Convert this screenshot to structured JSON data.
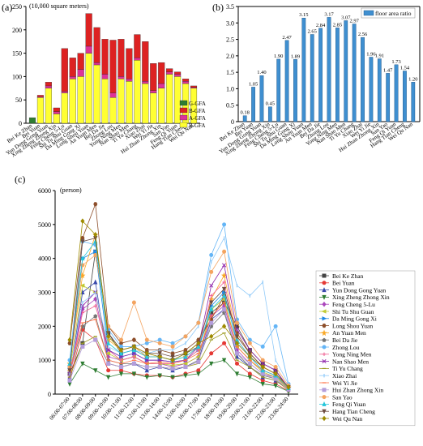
{
  "panels": {
    "a": "(a)",
    "b": "(b)",
    "c": "(c)"
  },
  "chart_data": [
    {
      "type": "bar",
      "stacked": true,
      "ylabel": "(10,000 square meters)",
      "ylim": [
        0,
        250
      ],
      "yticks": [
        0,
        50,
        100,
        150,
        200,
        250
      ],
      "legend_position": "bottom-right",
      "categories": [
        "Bei Ke Zhan",
        "Bei Yuan",
        "Yun Dong Gong Yuan",
        "Xing Zheng Zhong Xin",
        "Feng Cheng 5-Lu",
        "Shi Tu Shu Guan",
        "Da Ming Gong Xi",
        "Long Shou Yuan",
        "An Yuan Men",
        "Bei Da Jie",
        "Zhong Lou",
        "Yong Ning Men",
        "Nan Shao Men",
        "Ti Yu Chang",
        "Xiao Zhai",
        "Wei Yi Jie",
        "Hui Zhan Zhong Xin",
        "San Yao",
        "Feng Qi Yuan",
        "Hang Tian Cheng",
        "Wei Qu Nan"
      ],
      "series": [
        {
          "name": "R-GFA",
          "color": "#ffff33",
          "values": [
            0,
            55,
            75,
            20,
            65,
            95,
            100,
            150,
            125,
            95,
            55,
            95,
            90,
            135,
            85,
            65,
            75,
            105,
            100,
            85,
            75
          ]
        },
        {
          "name": "A-GFA",
          "color": "#dd3399",
          "values": [
            0,
            2,
            5,
            5,
            3,
            5,
            15,
            15,
            5,
            10,
            10,
            5,
            5,
            5,
            5,
            5,
            10,
            5,
            5,
            5,
            2
          ]
        },
        {
          "name": "B-GFA",
          "color": "#dd2222",
          "values": [
            0,
            3,
            8,
            8,
            92,
            40,
            35,
            70,
            75,
            75,
            113,
            80,
            65,
            50,
            85,
            58,
            45,
            7,
            5,
            5,
            3
          ]
        },
        {
          "name": "G-GFA",
          "color": "#2e7d32",
          "values": [
            12,
            0,
            0,
            0,
            0,
            0,
            0,
            0,
            0,
            0,
            0,
            0,
            0,
            0,
            0,
            0,
            0,
            0,
            0,
            0,
            0
          ]
        }
      ]
    },
    {
      "type": "bar",
      "ylim": [
        0,
        3.5
      ],
      "yticks": [
        "0",
        "0.5",
        "1.0",
        "1.5",
        "2.0",
        "2.5",
        "3.0",
        "3.5"
      ],
      "legend_position": "top-right",
      "categories": [
        "Bei Ke Zhan",
        "Bei Yuan",
        "Yun Dong Gong Yuan",
        "Xing Zheng Zhong Xin",
        "Feng Cheng 5-Lu",
        "Shi Tu Shu Guan",
        "Da Ming Gong Xi",
        "Long Shou Yuan",
        "An Yuan Men",
        "Bei Da Jie",
        "Zhong Lou",
        "Yong Ning Men",
        "Nan Shao Men",
        "Ti Yu Chang",
        "Xiao Zhai",
        "Wei Yi Jie",
        "Hui Zhan Zhong Xin",
        "San Yao",
        "Feng Qi Yuan",
        "Hang Tian Cheng",
        "Wei Qu Nan"
      ],
      "series": [
        {
          "name": "floor area ratio",
          "color": "#3f8fd0",
          "values": [
            0.18,
            1.05,
            1.4,
            0.45,
            1.9,
            2.47,
            1.89,
            3.15,
            2.65,
            2.84,
            3.17,
            2.85,
            3.07,
            2.97,
            2.56,
            1.96,
            1.91,
            1.47,
            1.73,
            1.54,
            1.2
          ],
          "labels": [
            "0.18",
            "1.05",
            "1.40",
            "0.45",
            "1.90",
            "2.47",
            "1.89",
            "3.15",
            "2.65",
            "2.84",
            "3.17",
            "2.85",
            "3.07",
            "2.97",
            "2.56",
            "1.96",
            "1.91",
            "1.47",
            "1.73",
            "1.54",
            "1.20"
          ]
        }
      ]
    },
    {
      "type": "line",
      "ylabel": "(person)",
      "ylim": [
        0,
        6000
      ],
      "yticks": [
        0,
        1000,
        2000,
        3000,
        4000,
        5000,
        6000
      ],
      "legend_position": "right",
      "x": [
        "06:00-07:00",
        "07:00-08:00",
        "08:00-09:00",
        "09:00-10:00",
        "10:00-11:00",
        "11:00-12:00",
        "12:00-13:00",
        "13:00-14:00",
        "14:00-15:00",
        "15:00-16:00",
        "16:00-17:00",
        "17:00-18:00",
        "18:00-19:00",
        "19:00-20:00",
        "20:00-21:00",
        "21:00-22:00",
        "22:00-23:00",
        "23:00-24:00"
      ],
      "series": [
        {
          "name": "Bei Ke Zhan",
          "color": "#444444",
          "marker": "square",
          "values": [
            600,
            1500,
            4200,
            1800,
            1200,
            1300,
            1100,
            1100,
            1000,
            1200,
            1400,
            2400,
            2700,
            2000,
            1300,
            900,
            700,
            150
          ]
        },
        {
          "name": "Bei Yuan",
          "color": "#e53935",
          "marker": "circle",
          "values": [
            400,
            1900,
            1600,
            700,
            700,
            600,
            550,
            550,
            500,
            600,
            700,
            1200,
            1500,
            900,
            600,
            400,
            300,
            100
          ]
        },
        {
          "name": "Yun Dong Gong Yuan",
          "color": "#3949ab",
          "marker": "triangle-up",
          "values": [
            500,
            3000,
            3300,
            900,
            800,
            900,
            700,
            800,
            700,
            800,
            1000,
            2200,
            2500,
            1100,
            800,
            500,
            400,
            150
          ]
        },
        {
          "name": "Xing Zheng Zhong Xin",
          "color": "#2e7d32",
          "marker": "triangle-down",
          "values": [
            300,
            900,
            700,
            500,
            600,
            600,
            500,
            550,
            500,
            550,
            600,
            900,
            1000,
            600,
            500,
            300,
            250,
            80
          ]
        },
        {
          "name": "Feng Cheng 5-Lu",
          "color": "#ab47bc",
          "marker": "diamond",
          "values": [
            600,
            2500,
            2800,
            1100,
            1000,
            1100,
            900,
            900,
            800,
            900,
            1100,
            2300,
            2600,
            1300,
            900,
            600,
            500,
            150
          ]
        },
        {
          "name": "Shi Tu Shu Guan",
          "color": "#c0ca33",
          "marker": "triangle-left",
          "values": [
            700,
            3200,
            3000,
            1200,
            1000,
            1100,
            900,
            900,
            850,
            900,
            1100,
            2500,
            2800,
            1400,
            1000,
            650,
            500,
            150
          ]
        },
        {
          "name": "Da Ming Gong Xi",
          "color": "#1e88e5",
          "marker": "triangle-right",
          "values": [
            800,
            4000,
            4200,
            1300,
            1100,
            1200,
            1000,
            1000,
            950,
            1000,
            1300,
            2600,
            3000,
            1500,
            1100,
            700,
            550,
            200
          ]
        },
        {
          "name": "Long Shou Yuan",
          "color": "#8d4e2a",
          "marker": "hexagon",
          "values": [
            1500,
            4600,
            5600,
            2000,
            1500,
            1600,
            1300,
            1300,
            1200,
            1300,
            1600,
            2200,
            2900,
            1800,
            1200,
            800,
            600,
            200
          ]
        },
        {
          "name": "An Yuan Men",
          "color": "#f9a825",
          "marker": "star",
          "values": [
            900,
            3500,
            4700,
            1600,
            1300,
            1400,
            1100,
            1100,
            1000,
            1100,
            1400,
            2800,
            3500,
            1700,
            1200,
            800,
            600,
            200
          ]
        },
        {
          "name": "Bei Da Jie",
          "color": "#757575",
          "marker": "pentagon",
          "values": [
            600,
            2000,
            2300,
            1000,
            900,
            900,
            800,
            800,
            750,
            800,
            1000,
            2000,
            2400,
            1200,
            800,
            550,
            450,
            120
          ]
        },
        {
          "name": "Zhong Lou",
          "color": "#64b5f6",
          "marker": "circle",
          "values": [
            1000,
            4500,
            4400,
            1900,
            1400,
            1400,
            1500,
            1600,
            1500,
            1700,
            2100,
            4100,
            5000,
            2200,
            1600,
            1400,
            2000,
            300
          ]
        },
        {
          "name": "Yong Ning Men",
          "color": "#f06292",
          "marker": "plus",
          "values": [
            500,
            2400,
            2600,
            1300,
            1000,
            1100,
            900,
            900,
            900,
            1000,
            1300,
            2900,
            3300,
            1600,
            1100,
            800,
            600,
            180
          ]
        },
        {
          "name": "Nan Shao Men",
          "color": "#8e24aa",
          "marker": "x",
          "values": [
            600,
            2600,
            3000,
            1300,
            1100,
            1200,
            1000,
            1000,
            950,
            1000,
            1400,
            3200,
            3800,
            1900,
            1300,
            900,
            700,
            200
          ]
        },
        {
          "name": "Ti Yu Chang",
          "color": "#9e9d24",
          "marker": "dash",
          "values": [
            500,
            1500,
            1700,
            900,
            800,
            900,
            800,
            800,
            750,
            800,
            900,
            1600,
            1800,
            1000,
            800,
            500,
            400,
            120
          ]
        },
        {
          "name": "Xiao Zhai",
          "color": "#90caf9",
          "marker": "pipe",
          "values": [
            600,
            2700,
            3000,
            1400,
            1200,
            1300,
            1200,
            1300,
            1300,
            1500,
            2000,
            3900,
            4600,
            3200,
            2900,
            3300,
            1000,
            300
          ]
        },
        {
          "name": "Wei Yi Jie",
          "color": "#ff7043",
          "marker": "dash",
          "values": [
            700,
            2100,
            2200,
            1000,
            900,
            1000,
            900,
            950,
            900,
            1000,
            1200,
            2300,
            2700,
            1400,
            1000,
            700,
            550,
            150
          ]
        },
        {
          "name": "Hui Zhan Zhong Xin",
          "color": "#b39ddb",
          "marker": "square",
          "values": [
            400,
            1400,
            1600,
            900,
            800,
            900,
            800,
            800,
            750,
            800,
            950,
            2100,
            2500,
            1200,
            900,
            600,
            450,
            130
          ]
        },
        {
          "name": "San Yao",
          "color": "#f4a460",
          "marker": "circle",
          "values": [
            800,
            3800,
            4100,
            2000,
            1600,
            2700,
            1600,
            1500,
            1400,
            1700,
            2100,
            3600,
            4200,
            2100,
            1500,
            1000,
            800,
            250
          ]
        },
        {
          "name": "Feng Qi Yuan",
          "color": "#26c6da",
          "marker": "triangle-up",
          "values": [
            900,
            4000,
            4500,
            1500,
            1200,
            1300,
            1100,
            1100,
            1000,
            1100,
            1400,
            2500,
            2900,
            1600,
            1100,
            700,
            550,
            180
          ]
        },
        {
          "name": "Hang Tian Cheng",
          "color": "#6d4c41",
          "marker": "triangle-down",
          "values": [
            700,
            4500,
            4600,
            1800,
            1300,
            1400,
            1200,
            1200,
            1100,
            1200,
            1500,
            2700,
            3100,
            1700,
            1200,
            800,
            600,
            200
          ]
        },
        {
          "name": "Wei Qu Nan",
          "color": "#9e8b00",
          "marker": "diamond",
          "values": [
            1600,
            5100,
            4700,
            1700,
            1300,
            1400,
            1200,
            1100,
            1000,
            1200,
            1500,
            1700,
            2000,
            1500,
            1100,
            800,
            600,
            200
          ]
        }
      ]
    }
  ]
}
